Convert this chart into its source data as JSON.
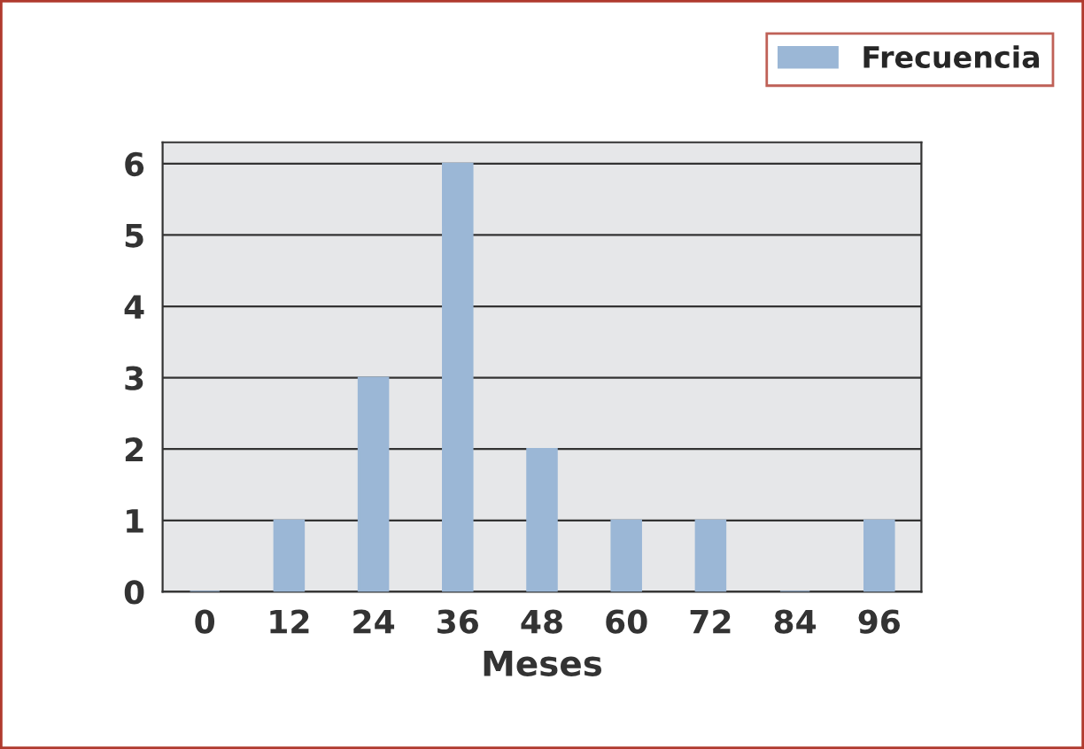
{
  "chart_data": {
    "type": "bar",
    "xlabel": "Meses",
    "categories": [
      "0",
      "12",
      "24",
      "36",
      "48",
      "60",
      "72",
      "84",
      "96"
    ],
    "series": [
      {
        "name": "Frecuencia",
        "color": "#9bb7d6",
        "values": [
          0,
          1,
          3,
          6,
          2,
          1,
          1,
          0,
          1
        ]
      }
    ],
    "ylim": [
      0,
      6.3
    ],
    "yticks": [
      0,
      1,
      2,
      3,
      4,
      5,
      6
    ],
    "grid": "y",
    "legend": "top right"
  }
}
